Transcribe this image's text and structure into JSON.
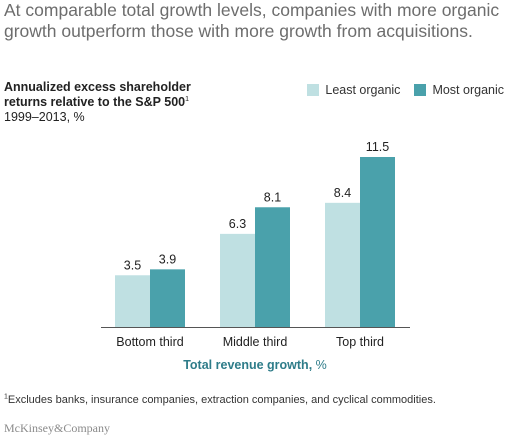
{
  "headline": "At comparable total growth levels, companies with more organic growth outperform those with more growth from acquisitions.",
  "subtitle": {
    "line1": "Annualized excess shareholder",
    "line2": "returns relative to the S&P 500",
    "footnote_marker": "1",
    "period": "1999–2013, %"
  },
  "x_axis_label": {
    "bold": "Total revenue growth,",
    "unit": " %"
  },
  "footnote": {
    "marker": "1",
    "text": "Excludes banks, insurance companies, extraction companies, and cyclical commodities."
  },
  "brand": "McKinsey&Company",
  "chart_data": {
    "type": "bar",
    "categories": [
      "Bottom third",
      "Middle third",
      "Top third"
    ],
    "series": [
      {
        "name": "Least organic",
        "values": [
          3.5,
          6.3,
          8.4
        ],
        "color": "#bfe0e2"
      },
      {
        "name": "Most organic",
        "values": [
          3.9,
          8.1,
          11.5
        ],
        "color": "#4aa1ab"
      }
    ],
    "title": "Annualized excess shareholder returns relative to the S&P 500",
    "xlabel": "Total revenue growth, %",
    "ylabel": "",
    "ylim": [
      0,
      11.5
    ],
    "legend_position": "top-right",
    "grid": false,
    "data_labels": true
  }
}
